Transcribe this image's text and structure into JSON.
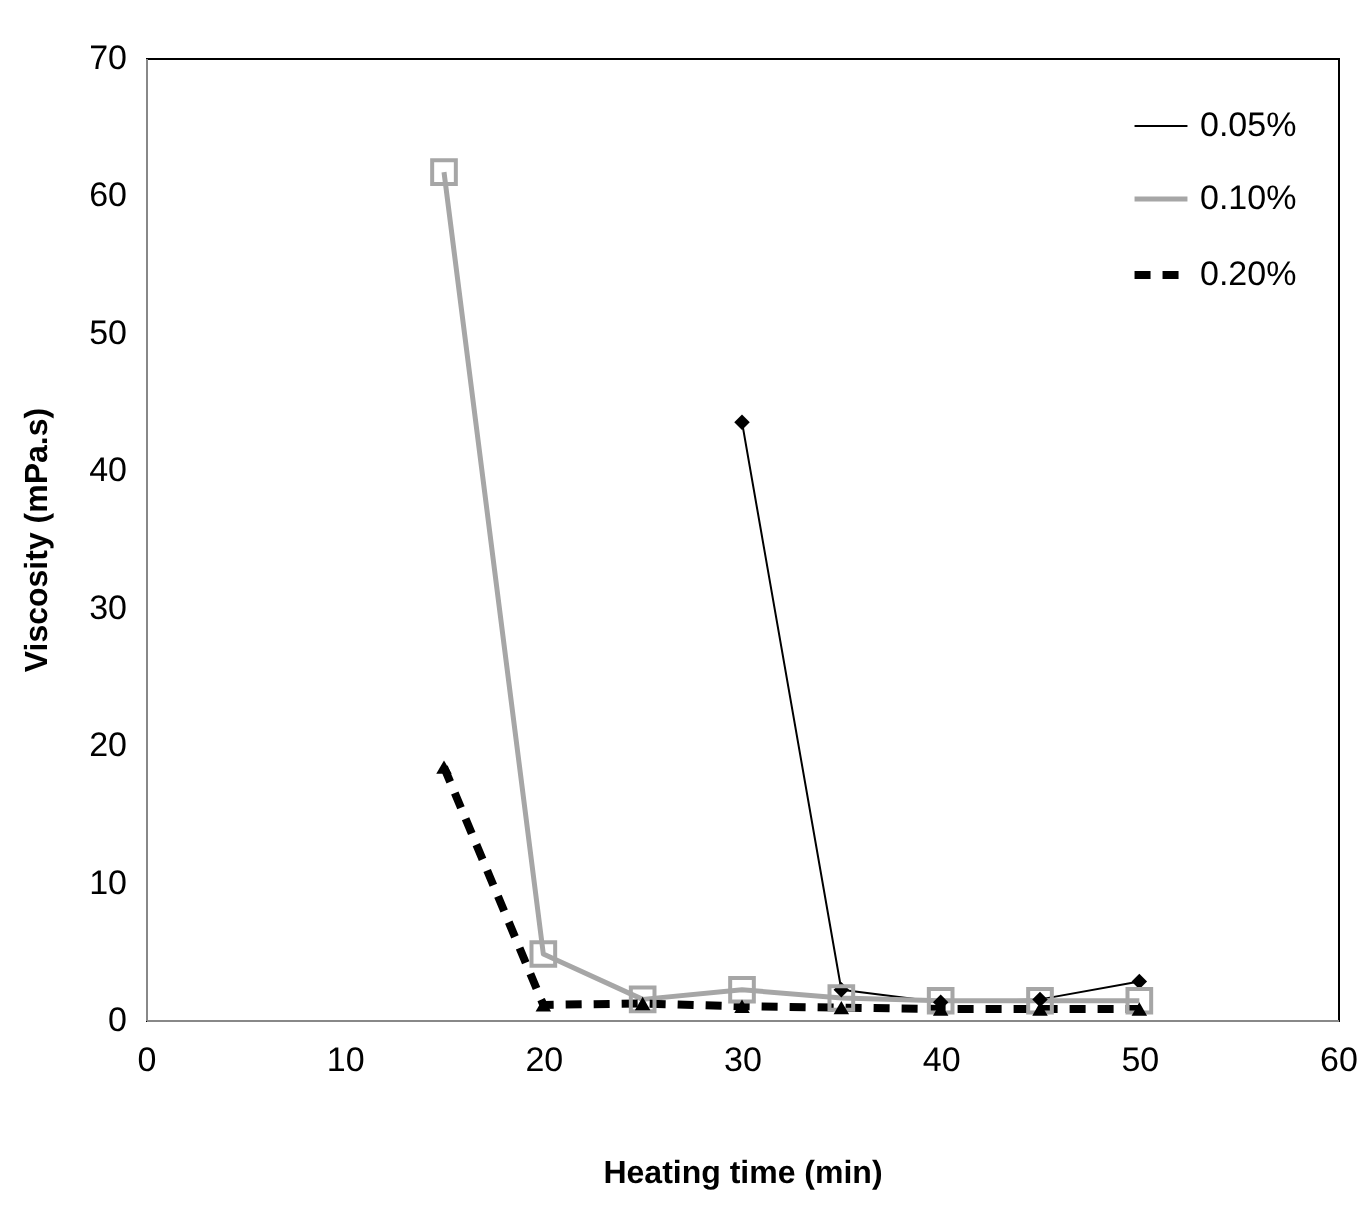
{
  "chart_data": {
    "type": "line",
    "xlabel": "Heating time (min)",
    "ylabel": "Viscosity (mPa.s)",
    "x": [
      15,
      20,
      25,
      30,
      35,
      40,
      45,
      50
    ],
    "xlim": [
      0,
      60
    ],
    "xticks": [
      0,
      10,
      20,
      30,
      40,
      50,
      60
    ],
    "ylim": [
      0,
      70
    ],
    "yticks": [
      0,
      10,
      20,
      30,
      40,
      50,
      60,
      70
    ],
    "grid": false,
    "legend": "top right",
    "series": [
      {
        "name": "0.05%",
        "color": "#000000",
        "marker": "diamond",
        "line_style": "solid",
        "values": [
          null,
          null,
          null,
          43.5,
          2.2,
          1.3,
          1.5,
          2.8
        ]
      },
      {
        "name": "0.10%",
        "color": "#a6a6a6",
        "marker": "square",
        "line_style": "solid",
        "values": [
          61.7,
          4.8,
          1.5,
          2.2,
          1.6,
          1.4,
          1.4,
          1.4
        ]
      },
      {
        "name": "0.20%",
        "color": "#000000",
        "marker": "triangle",
        "line_style": "dashed",
        "values": [
          18.4,
          1.1,
          1.2,
          1.0,
          0.9,
          0.8,
          0.8,
          0.8
        ]
      }
    ]
  }
}
